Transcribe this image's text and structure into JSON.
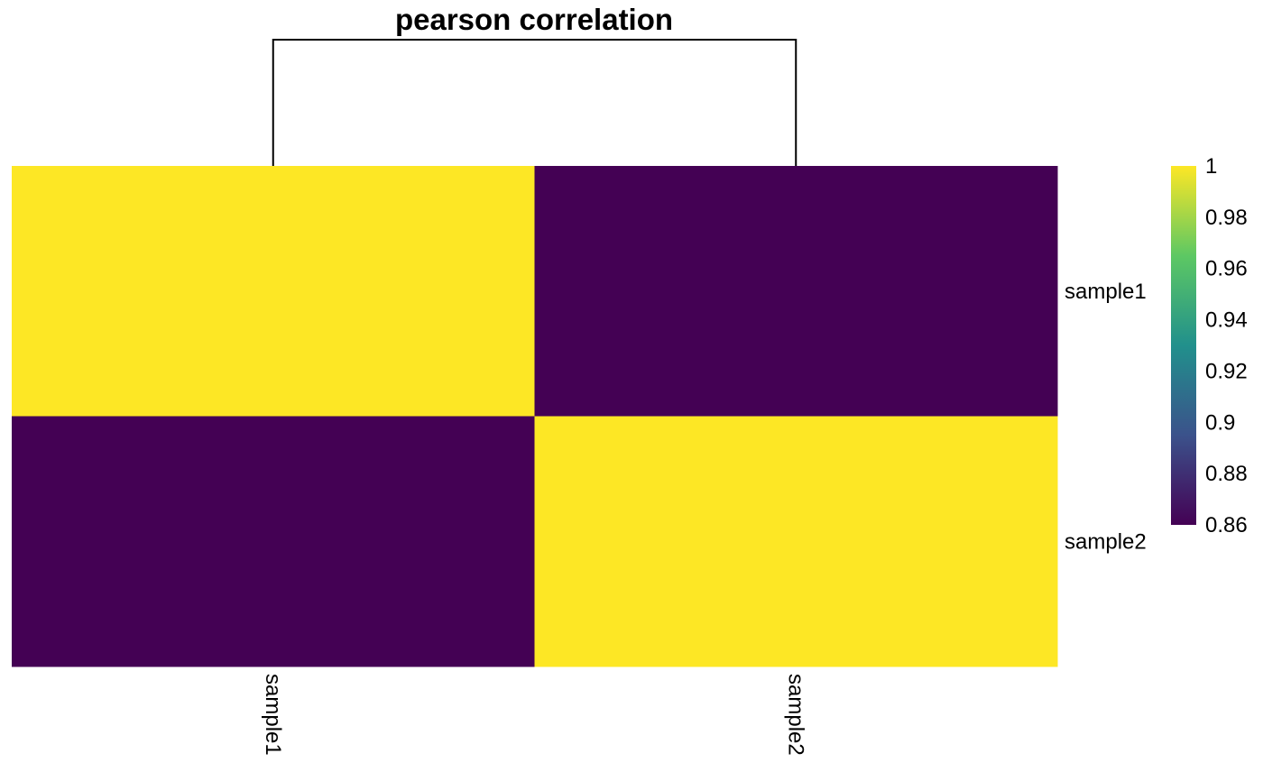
{
  "chart_data": {
    "type": "heatmap",
    "title": "pearson correlation",
    "rows": [
      "sample1",
      "sample2"
    ],
    "columns": [
      "sample1",
      "sample2"
    ],
    "values": [
      [
        1.0,
        0.86
      ],
      [
        0.86,
        1.0
      ]
    ],
    "dendrogram": "columns",
    "colorbar": {
      "min": 0.86,
      "max": 1.0,
      "ticks": [
        "1",
        "0.98",
        "0.96",
        "0.94",
        "0.92",
        "0.9",
        "0.88",
        "0.86"
      ],
      "tick_values": [
        1.0,
        0.98,
        0.96,
        0.94,
        0.92,
        0.9,
        0.88,
        0.86
      ],
      "colormap": "viridis",
      "colors": [
        "#440154",
        "#3B528B",
        "#21908C",
        "#5DC863",
        "#FDE725"
      ]
    },
    "legend_placement": "right",
    "grid": false
  }
}
